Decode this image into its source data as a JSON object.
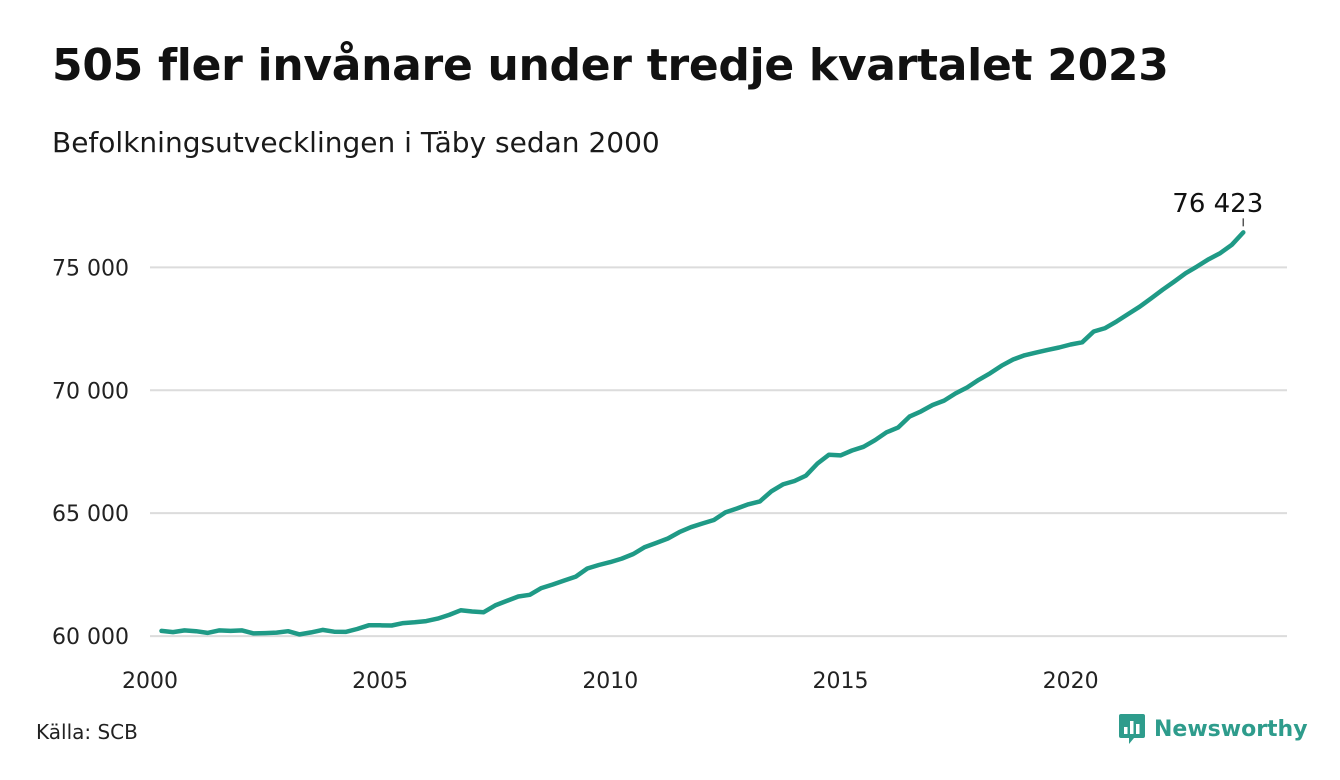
{
  "header": {
    "title": "505 fler invånare under tredje kvartalet 2023",
    "subtitle": "Befolkningsutvecklingen i Täby sedan 2000"
  },
  "footer": {
    "source": "Källa: SCB",
    "brand": "Newsworthy",
    "brand_icon": "bar-chart-speech-bubble-icon"
  },
  "colors": {
    "line": "#1f9a86",
    "grid": "#dcdcdc",
    "brand": "#2e9c8c"
  },
  "chart_data": {
    "type": "line",
    "title": "505 fler invånare under tredje kvartalet 2023",
    "subtitle": "Befolkningsutvecklingen i Täby sedan 2000",
    "xlabel": "",
    "ylabel": "",
    "xlim": [
      2000,
      2024.7
    ],
    "ylim": [
      59800,
      76600
    ],
    "yticks": [
      60000,
      65000,
      70000,
      75000
    ],
    "ytick_labels": [
      "60 000",
      "65 000",
      "70 000",
      "75 000"
    ],
    "xticks": [
      2000,
      2005,
      2010,
      2015,
      2020
    ],
    "xtick_labels": [
      "2000",
      "2005",
      "2010",
      "2015",
      "2020"
    ],
    "grid": "horizontal",
    "end_label": "76 423",
    "series": [
      {
        "x": [
          2000.25,
          2000.5,
          2000.75,
          2001.0,
          2001.25,
          2001.5,
          2001.75,
          2002.0,
          2002.25,
          2002.5,
          2002.75,
          2003.0,
          2003.25,
          2003.5,
          2003.75,
          2004.0,
          2004.25,
          2004.5,
          2004.75,
          2005.0,
          2005.25,
          2005.5,
          2005.75,
          2006.0,
          2006.25,
          2006.5,
          2006.75,
          2007.0,
          2007.25,
          2007.5,
          2007.75,
          2008.0,
          2008.25,
          2008.5,
          2008.75,
          2009.0,
          2009.25,
          2009.5,
          2009.75,
          2010.0,
          2010.25,
          2010.5,
          2010.75,
          2011.0,
          2011.25,
          2011.5,
          2011.75,
          2012.0,
          2012.25,
          2012.5,
          2012.75,
          2013.0,
          2013.25,
          2013.5,
          2013.75,
          2014.0,
          2014.25,
          2014.5,
          2014.75,
          2015.0,
          2015.25,
          2015.5,
          2015.75,
          2016.0,
          2016.25,
          2016.5,
          2016.75,
          2017.0,
          2017.25,
          2017.5,
          2017.75,
          2018.0,
          2018.25,
          2018.5,
          2018.75,
          2019.0,
          2019.25,
          2019.5,
          2019.75,
          2020.0,
          2020.25,
          2020.5,
          2020.75,
          2021.0,
          2021.25,
          2021.5,
          2021.75,
          2022.0,
          2022.25,
          2022.5,
          2022.75,
          2023.0,
          2023.25,
          2023.5,
          2023.75
        ],
        "values": [
          60210,
          60160,
          60230,
          60200,
          60130,
          60230,
          60210,
          60230,
          60110,
          60120,
          60140,
          60200,
          60070,
          60150,
          60250,
          60180,
          60170,
          60290,
          60440,
          60440,
          60430,
          60530,
          60560,
          60610,
          60710,
          60860,
          61050,
          61000,
          60970,
          61250,
          61430,
          61610,
          61680,
          61950,
          62100,
          62260,
          62420,
          62750,
          62890,
          63010,
          63150,
          63340,
          63620,
          63790,
          63970,
          64230,
          64430,
          64580,
          64720,
          65030,
          65190,
          65360,
          65480,
          65890,
          66170,
          66310,
          66530,
          67020,
          67380,
          67350,
          67550,
          67700,
          67970,
          68290,
          68480,
          68930,
          69140,
          69400,
          69580,
          69870,
          70110,
          70420,
          70690,
          71000,
          71250,
          71420,
          71530,
          71640,
          71740,
          71860,
          71950,
          72390,
          72530,
          72800,
          73100,
          73400,
          73740,
          74090,
          74420,
          74760,
          75040,
          75330,
          75580,
          75918,
          76423
        ]
      }
    ]
  }
}
